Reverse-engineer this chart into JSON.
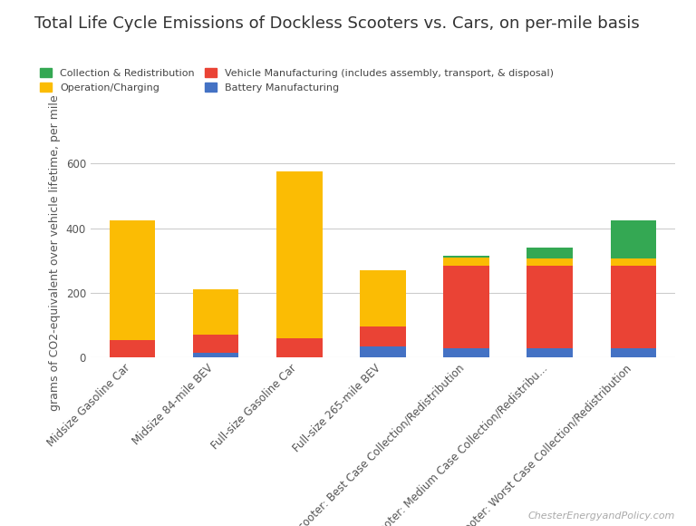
{
  "title": "Total Life Cycle Emissions of Dockless Scooters vs. Cars, on per-mile basis",
  "ylabel": "grams of CO2-equivalent over vehicle lifetime, per mile",
  "categories": [
    "Midsize Gasoline Car",
    "Midsize 84-mile BEV",
    "Full-size Gasoline Car",
    "Full-size 265-mile BEV",
    "Dockless Scooter: Best Case Collection/Redistribution",
    "Dockless Scooter: Medium Case Collection/Redistribu...",
    "Dockless Scooter: Worst Case Collection/Redistribution"
  ],
  "battery_manufacturing": [
    0,
    15,
    0,
    35,
    30,
    30,
    30
  ],
  "vehicle_manufacturing": [
    55,
    55,
    60,
    60,
    255,
    255,
    255
  ],
  "operation_charging": [
    370,
    140,
    515,
    175,
    25,
    22,
    22
  ],
  "collection_redistribution": [
    0,
    0,
    0,
    0,
    5,
    33,
    118
  ],
  "colors": {
    "battery": "#4472C4",
    "vehicle": "#EA4335",
    "operation": "#FBBC04",
    "collection": "#34A853"
  },
  "ylim": [
    0,
    650
  ],
  "yticks": [
    0,
    200,
    400,
    600
  ],
  "background_color": "#ffffff",
  "watermark": "ChesterEnergyandPolicy.com",
  "title_fontsize": 13,
  "axis_label_fontsize": 9,
  "tick_fontsize": 8.5
}
